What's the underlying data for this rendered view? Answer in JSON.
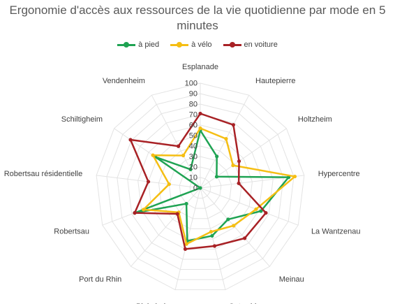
{
  "chart_data": {
    "type": "radar",
    "title": "Ergonomie d'accès aux ressources de la vie quotidienne par mode en 5 minutes",
    "categories": [
      "Esplanade",
      "Hautepierre",
      "Holtzheim",
      "Hypercentre",
      "La Wantzenau",
      "Meinau",
      "Ostwald",
      "Plobsheim",
      "Port du Rhin",
      "Robertsau",
      "Robertsau résidentielle",
      "Schiltigheim",
      "Vendenheim"
    ],
    "axis": {
      "min": 0,
      "max": 100,
      "step": 10,
      "ticks": [
        "0",
        "10",
        "20",
        "30",
        "40",
        "50",
        "60",
        "70",
        "80",
        "90",
        "100"
      ]
    },
    "grid": true,
    "legend_position": "top",
    "series": [
      {
        "name": "à pied",
        "color": "#1fa353",
        "values": [
          55,
          34,
          19,
          85,
          62,
          40,
          47,
          52,
          20,
          67,
          0,
          52,
          20
        ]
      },
      {
        "name": "à vélo",
        "color": "#f5be13",
        "values": [
          57,
          53,
          38,
          91,
          57,
          48,
          43,
          55,
          31,
          58,
          30,
          55,
          35
        ]
      },
      {
        "name": "en voiture",
        "color": "#a82125",
        "values": [
          71,
          68,
          45,
          37,
          67,
          64,
          57,
          60,
          33,
          67,
          50,
          81,
          45
        ]
      }
    ]
  }
}
